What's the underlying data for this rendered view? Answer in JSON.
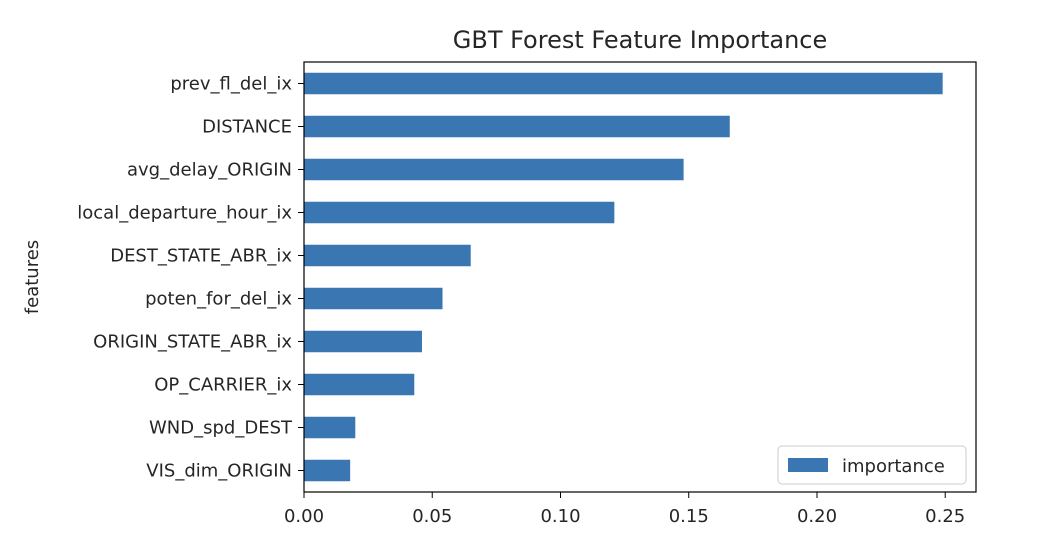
{
  "chart_data": {
    "type": "bar",
    "orientation": "horizontal",
    "title": "GBT Forest Feature Importance",
    "xlabel": "",
    "ylabel": "features",
    "categories": [
      "prev_fl_del_ix",
      "DISTANCE",
      "avg_delay_ORIGIN",
      "local_departure_hour_ix",
      "DEST_STATE_ABR_ix",
      "poten_for_del_ix",
      "ORIGIN_STATE_ABR_ix",
      "OP_CARRIER_ix",
      "WND_spd_DEST",
      "VIS_dim_ORIGIN"
    ],
    "series": [
      {
        "name": "importance",
        "values": [
          0.249,
          0.166,
          0.148,
          0.121,
          0.065,
          0.054,
          0.046,
          0.043,
          0.02,
          0.018
        ]
      }
    ],
    "xlim": [
      0,
      0.262
    ],
    "xticks": [
      0.0,
      0.05,
      0.1,
      0.15,
      0.2,
      0.25
    ],
    "xtick_labels": [
      "0.00",
      "0.05",
      "0.10",
      "0.15",
      "0.20",
      "0.25"
    ],
    "legend_position": "lower-right",
    "grid": false,
    "bar_color": "#3a76b2"
  }
}
